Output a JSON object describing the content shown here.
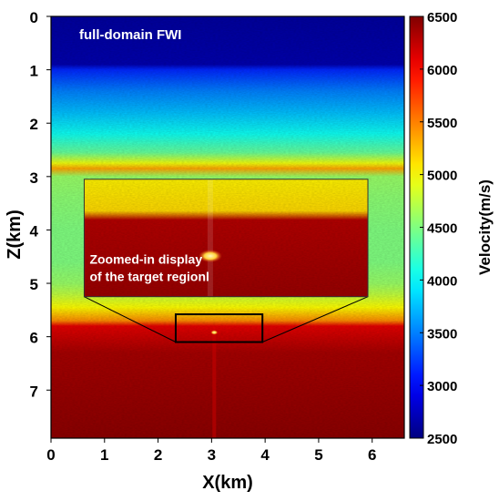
{
  "chart_data": {
    "type": "heatmap",
    "title": "",
    "panel_label": "full-domain FWI",
    "inset_label": [
      "Zoomed-in display",
      "of the target regionl"
    ],
    "xlabel": "X(km)",
    "ylabel": "Z(km)",
    "xlim": [
      0,
      6.6
    ],
    "ylim": [
      0,
      7.9
    ],
    "y_inverted": true,
    "x_ticks": [
      "0",
      "1",
      "2",
      "3",
      "4",
      "5",
      "6"
    ],
    "y_ticks": [
      "0",
      "1",
      "2",
      "3",
      "4",
      "5",
      "6",
      "7"
    ],
    "colorbar": {
      "label": "Velocity(m/s)",
      "min": 2500,
      "max": 6500,
      "ticks": [
        "2500",
        "3000",
        "3500",
        "4000",
        "4500",
        "5000",
        "5500",
        "6000",
        "6500"
      ],
      "colormap": "jet"
    },
    "velocity_profile": [
      {
        "z": 0.0,
        "v": 2620
      },
      {
        "z": 0.9,
        "v": 2680
      },
      {
        "z": 1.0,
        "v": 3150
      },
      {
        "z": 1.4,
        "v": 3500
      },
      {
        "z": 1.8,
        "v": 3750
      },
      {
        "z": 2.2,
        "v": 4050
      },
      {
        "z": 2.55,
        "v": 4400
      },
      {
        "z": 2.75,
        "v": 4950
      },
      {
        "z": 2.85,
        "v": 5350
      },
      {
        "z": 3.0,
        "v": 4600
      },
      {
        "z": 3.4,
        "v": 4550
      },
      {
        "z": 4.0,
        "v": 4500
      },
      {
        "z": 4.6,
        "v": 4500
      },
      {
        "z": 5.0,
        "v": 4600
      },
      {
        "z": 5.2,
        "v": 4750
      },
      {
        "z": 5.45,
        "v": 5000
      },
      {
        "z": 5.7,
        "v": 5450
      },
      {
        "z": 5.8,
        "v": 6100
      },
      {
        "z": 6.3,
        "v": 6350
      },
      {
        "z": 7.9,
        "v": 6450
      }
    ],
    "target_region": {
      "x": [
        2.33,
        3.95
      ],
      "z": [
        5.58,
        6.1
      ]
    },
    "inset_region": {
      "x": [
        0.62,
        5.92
      ],
      "z": [
        3.05,
        5.25
      ]
    },
    "inset_profile": [
      {
        "z": 5.58,
        "v": 5050
      },
      {
        "z": 5.72,
        "v": 5150
      },
      {
        "z": 5.76,
        "v": 6300
      },
      {
        "z": 6.1,
        "v": 6400
      }
    ]
  }
}
